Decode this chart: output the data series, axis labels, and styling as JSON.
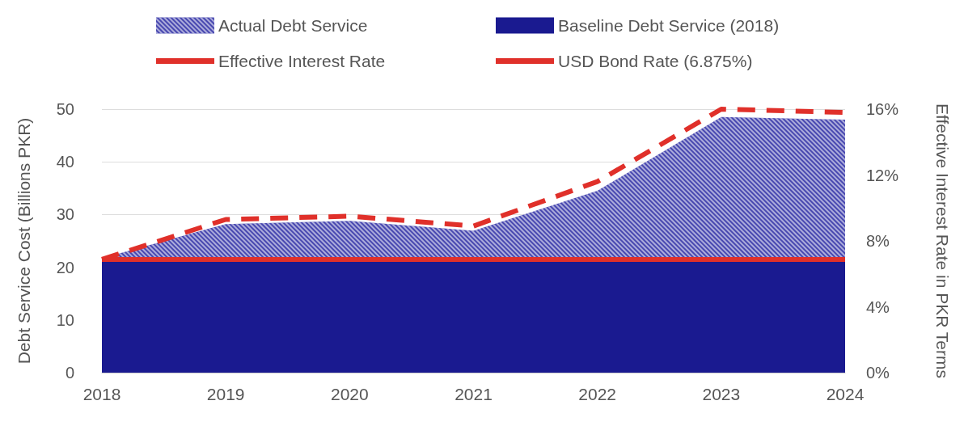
{
  "chart_data": {
    "type": "area",
    "categories": [
      "2018",
      "2019",
      "2020",
      "2021",
      "2022",
      "2023",
      "2024"
    ],
    "ylabel": "Debt Service Cost (Billions PKR)",
    "y2label": "Effective Interest Rate in PKR Terms",
    "series": [
      {
        "name": "Actual Debt Service",
        "color": "#4848b0",
        "values": [
          21.7,
          28.2,
          28.8,
          26.9,
          34.5,
          48.5,
          48.0
        ]
      },
      {
        "name": "Baseline Debt Service (2018)",
        "color": "#1a1a90",
        "values": [
          21.5,
          21.5,
          21.5,
          21.5,
          21.5,
          21.5,
          21.5
        ]
      },
      {
        "name": "Effective Interest Rate",
        "type": "line",
        "axis": "y2",
        "color": "#e0302a",
        "line_style": "dashed",
        "values": [
          6.875,
          9.3,
          9.5,
          8.9,
          11.6,
          16.0,
          15.8
        ]
      },
      {
        "name": "USD Bond Rate (6.875%)",
        "type": "line",
        "axis": "y2",
        "color": "#e0302a",
        "line_style": "solid",
        "values": [
          6.875,
          6.875,
          6.875,
          6.875,
          6.875,
          6.875,
          6.875
        ]
      }
    ],
    "ylim": [
      0,
      50
    ],
    "yticks": [
      0,
      10,
      20,
      30,
      40,
      50
    ],
    "y2lim": [
      0,
      16
    ],
    "y2ticks": [
      {
        "value": 0,
        "label": "0%"
      },
      {
        "value": 4,
        "label": "4%"
      },
      {
        "value": 8,
        "label": "8%"
      },
      {
        "value": 12,
        "label": "12%"
      },
      {
        "value": 16,
        "label": "16%"
      }
    ],
    "grid": "y",
    "legend": "top",
    "marker": "none"
  }
}
